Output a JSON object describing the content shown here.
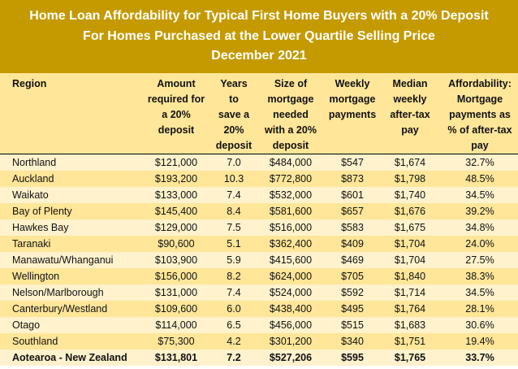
{
  "title": {
    "line1": "Home Loan Affordability for Typical First Home Buyers with a 20% Deposit",
    "line2": "For Homes Purchased at the Lower Quartile Selling Price",
    "line3": "December 2021"
  },
  "colors": {
    "title_bg": "#C49A00",
    "header_bg": "#FFE699",
    "row_light": "#FFF2CC",
    "row_dark": "#FFE699"
  },
  "headers": [
    [
      "Region"
    ],
    [
      "Amount",
      "required for",
      "a 20%",
      "deposit"
    ],
    [
      "Years to",
      "save a",
      "20%",
      "deposit"
    ],
    [
      "Size of",
      "mortgage",
      "needed",
      "with a 20%",
      "deposit"
    ],
    [
      "Weekly",
      "mortgage",
      "payments"
    ],
    [
      "Median",
      "weekly",
      "after-tax",
      "pay"
    ],
    [
      "Affordability:",
      "Mortgage",
      "payments as",
      "% of after-tax",
      "pay"
    ]
  ],
  "rows": [
    [
      "Northland",
      "$121,000",
      "7.0",
      "$484,000",
      "$547",
      "$1,674",
      "32.7%"
    ],
    [
      "Auckland",
      "$193,200",
      "10.3",
      "$772,800",
      "$873",
      "$1,798",
      "48.5%"
    ],
    [
      "Waikato",
      "$133,000",
      "7.4",
      "$532,000",
      "$601",
      "$1,740",
      "34.5%"
    ],
    [
      "Bay of Plenty",
      "$145,400",
      "8.4",
      "$581,600",
      "$657",
      "$1,676",
      "39.2%"
    ],
    [
      "Hawkes Bay",
      "$129,000",
      "7.5",
      "$516,000",
      "$583",
      "$1,675",
      "34.8%"
    ],
    [
      "Taranaki",
      "$90,600",
      "5.1",
      "$362,400",
      "$409",
      "$1,704",
      "24.0%"
    ],
    [
      "Manawatu/Whanganui",
      "$103,900",
      "5.9",
      "$415,600",
      "$469",
      "$1,704",
      "27.5%"
    ],
    [
      "Wellington",
      "$156,000",
      "8.2",
      "$624,000",
      "$705",
      "$1,840",
      "38.3%"
    ],
    [
      "Nelson/Marlborough",
      "$131,000",
      "7.4",
      "$524,000",
      "$592",
      "$1,714",
      "34.5%"
    ],
    [
      "Canterbury/Westland",
      "$109,600",
      "6.0",
      "$438,400",
      "$495",
      "$1,764",
      "28.1%"
    ],
    [
      "Otago",
      "$114,000",
      "6.5",
      "$456,000",
      "$515",
      "$1,683",
      "30.6%"
    ],
    [
      "Southland",
      "$75,300",
      "4.2",
      "$301,200",
      "$340",
      "$1,751",
      "19.4%"
    ]
  ],
  "total": [
    "Aotearoa - New Zealand",
    "$131,801",
    "7.2",
    "$527,206",
    "$595",
    "$1,765",
    "33.7%"
  ]
}
